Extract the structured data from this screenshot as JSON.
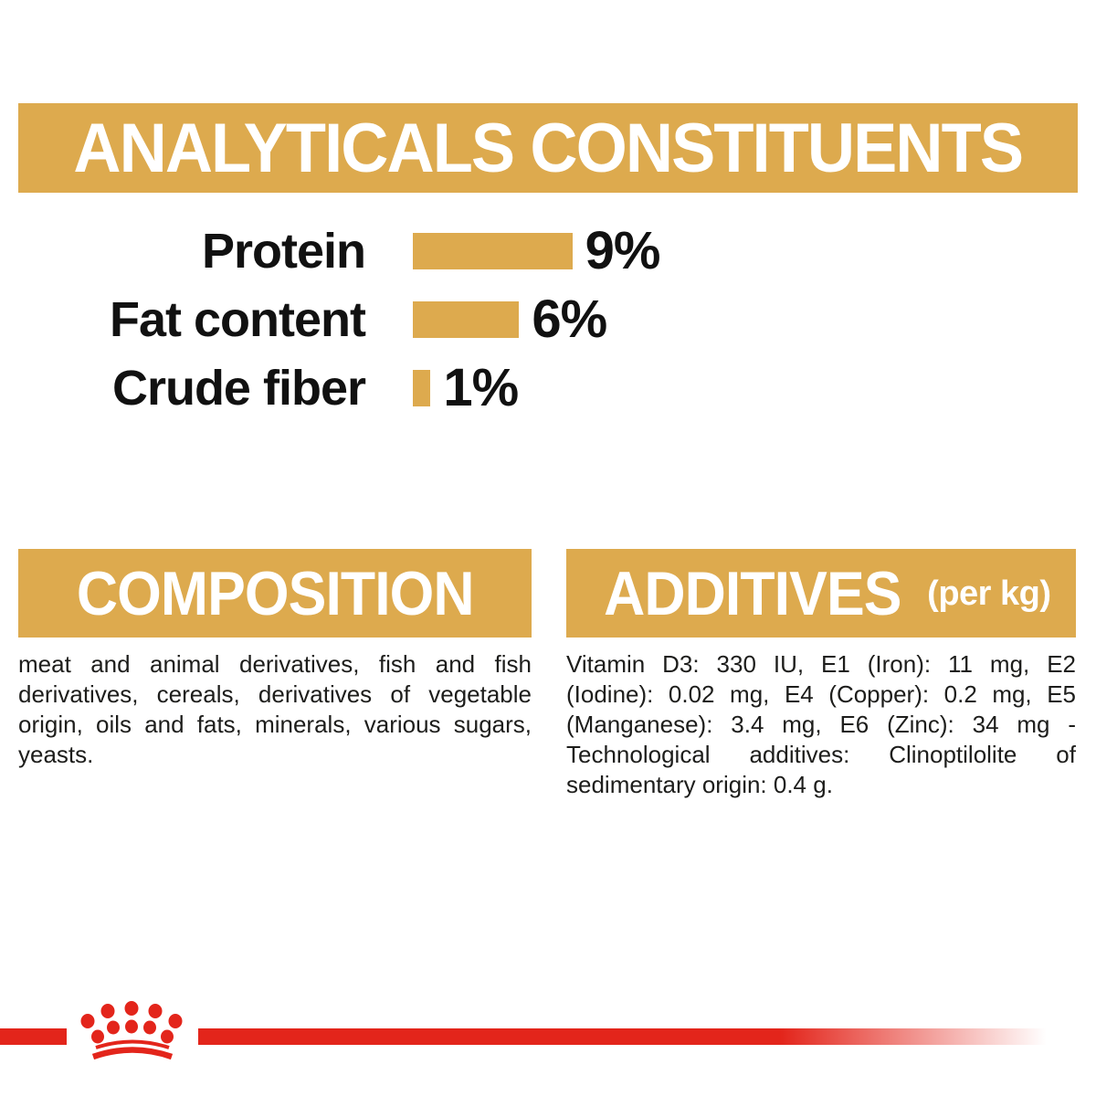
{
  "colors": {
    "gold": "#DDAA4E",
    "red": "#E3251B",
    "heading_text": "#FFFFFF",
    "label_text": "#111111",
    "body_text": "#1D1D1B",
    "background": "#FFFFFF"
  },
  "analyticals": {
    "title": "ANALYTICALS CONSTITUENTS",
    "rows": [
      {
        "label": "Protein",
        "percent": 9,
        "value_label": "9%"
      },
      {
        "label": "Fat content",
        "percent": 6,
        "value_label": "6%"
      },
      {
        "label": "Crude fiber",
        "percent": 1,
        "value_label": "1%"
      }
    ]
  },
  "chart_data": {
    "type": "bar",
    "orientation": "horizontal",
    "title": "ANALYTICALS CONSTITUENTS",
    "categories": [
      "Protein",
      "Fat content",
      "Crude fiber"
    ],
    "values": [
      9,
      6,
      1
    ],
    "unit": "%",
    "value_labels": [
      "9%",
      "6%",
      "1%"
    ],
    "bar_color": "#DDAA4E",
    "xlim": [
      0,
      10
    ],
    "grid": false,
    "legend": false
  },
  "composition": {
    "title": "COMPOSITION",
    "body": "meat and animal derivatives, fish and fish derivatives, cereals, derivatives of vegetable origin, oils and fats, minerals, various sugars, yeasts."
  },
  "additives": {
    "title": "ADDITIVES",
    "title_suffix": "(per kg)",
    "body": "Vitamin D3: 330 IU, E1 (Iron): 11 mg, E2 (Iodine): 0.02 mg, E4 (Copper): 0.2 mg, E5 (Manganese): 3.4 mg, E6 (Zinc): 34 mg - Technological additives: Clinoptilolite of sedimentary origin: 0.4 g."
  },
  "footer": {
    "brand_logo": "royal-canin-crown"
  }
}
